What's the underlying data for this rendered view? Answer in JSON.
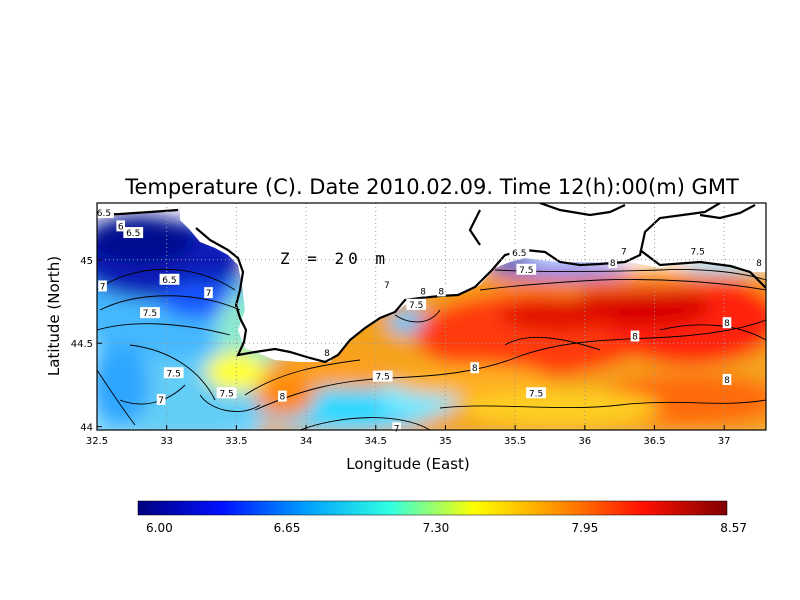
{
  "chart_data": {
    "type": "heatmap",
    "title": "Temperature (C). Date 2010.02.09. Time 12(h):00(m) GMT",
    "xlabel": "Longitude (East)",
    "ylabel": "Latitude (North)",
    "xlim": [
      32.5,
      37.3
    ],
    "ylim": [
      43.98,
      45.34
    ],
    "x_ticks": [
      "32.5",
      "33",
      "33.5",
      "34",
      "34.5",
      "35",
      "35.5",
      "36",
      "36.5",
      "37"
    ],
    "x_tick_values": [
      32.5,
      33,
      33.5,
      34,
      34.5,
      35,
      35.5,
      36,
      36.5,
      37
    ],
    "y_ticks": [
      "44",
      "44.5",
      "45"
    ],
    "y_tick_values": [
      44,
      44.5,
      45
    ],
    "grid": true,
    "annotation": "Z = 20 m",
    "colorbar": {
      "min": 6.0,
      "max": 8.57,
      "ticks": [
        "6.00",
        "6.65",
        "7.30",
        "7.95",
        "8.57"
      ],
      "tick_values": [
        6.0,
        6.65,
        7.3,
        7.95,
        8.57
      ],
      "colors": [
        "#000080",
        "#0010ff",
        "#00a0ff",
        "#30ffe0",
        "#ffff00",
        "#ff9000",
        "#ff1000",
        "#800000"
      ]
    },
    "contour_labels": [
      {
        "text": "6.5",
        "lon": 32.55,
        "lat": 45.28
      },
      {
        "text": "6",
        "lon": 32.67,
        "lat": 45.2
      },
      {
        "text": "6.5",
        "lon": 32.76,
        "lat": 45.16
      },
      {
        "text": "6.5",
        "lon": 33.02,
        "lat": 44.88
      },
      {
        "text": "7",
        "lon": 33.3,
        "lat": 44.8
      },
      {
        "text": "7",
        "lon": 32.54,
        "lat": 44.84
      },
      {
        "text": "7.5",
        "lon": 32.88,
        "lat": 44.68
      },
      {
        "text": "7.5",
        "lon": 33.05,
        "lat": 44.32
      },
      {
        "text": "7",
        "lon": 32.96,
        "lat": 44.16
      },
      {
        "text": "7.5",
        "lon": 33.43,
        "lat": 44.2
      },
      {
        "text": "8",
        "lon": 33.83,
        "lat": 44.18
      },
      {
        "text": "8",
        "lon": 34.15,
        "lat": 44.44
      },
      {
        "text": "7.5",
        "lon": 34.55,
        "lat": 44.3
      },
      {
        "text": "7",
        "lon": 34.65,
        "lat": 43.99
      },
      {
        "text": "7",
        "lon": 34.58,
        "lat": 44.85
      },
      {
        "text": "8",
        "lon": 34.84,
        "lat": 44.81
      },
      {
        "text": "7.5",
        "lon": 34.79,
        "lat": 44.73
      },
      {
        "text": "8",
        "lon": 34.97,
        "lat": 44.81
      },
      {
        "text": "6.5",
        "lon": 35.53,
        "lat": 45.04
      },
      {
        "text": "7.5",
        "lon": 35.58,
        "lat": 44.94
      },
      {
        "text": "8",
        "lon": 35.21,
        "lat": 44.35
      },
      {
        "text": "7.5",
        "lon": 35.65,
        "lat": 44.2
      },
      {
        "text": "8",
        "lon": 36.36,
        "lat": 44.54
      },
      {
        "text": "8",
        "lon": 36.2,
        "lat": 44.98
      },
      {
        "text": "7",
        "lon": 36.28,
        "lat": 45.05
      },
      {
        "text": "7.5",
        "lon": 36.81,
        "lat": 45.05
      },
      {
        "text": "8",
        "lon": 37.25,
        "lat": 44.98
      },
      {
        "text": "8",
        "lon": 37.02,
        "lat": 44.62
      },
      {
        "text": "8",
        "lon": 37.02,
        "lat": 44.28
      }
    ]
  }
}
